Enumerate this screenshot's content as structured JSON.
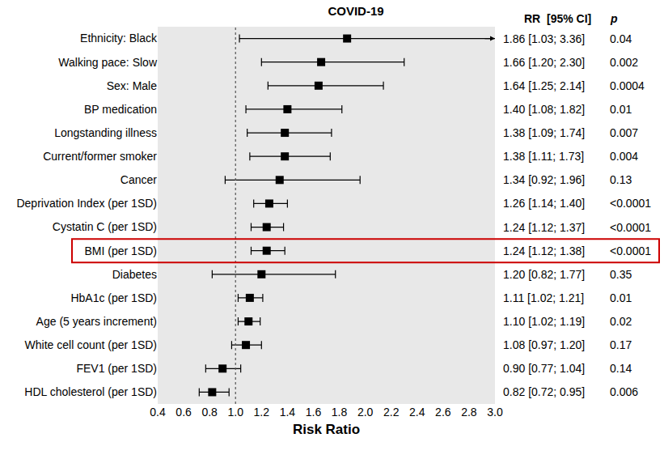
{
  "chart_data": {
    "type": "forest",
    "title": "COVID-19",
    "xlabel": "Risk Ratio",
    "categories": [
      "Ethnicity: Black",
      "Walking pace: Slow",
      "Sex: Male",
      "BP medication",
      "Longstanding illness",
      "Current/former smoker",
      "Cancer",
      "Deprivation Index (per 1SD)",
      "Cystatin C (per 1SD)",
      "BMI (per 1SD)",
      "Diabetes",
      "HbA1c (per 1SD)",
      "Age (5 years increment)",
      "White cell count (per 1SD)",
      "FEV1 (per 1SD)",
      "HDL cholesterol (per 1SD)"
    ],
    "values": [
      1.86,
      1.66,
      1.64,
      1.4,
      1.38,
      1.38,
      1.34,
      1.26,
      1.24,
      1.24,
      1.2,
      1.11,
      1.1,
      1.08,
      0.9,
      0.82
    ],
    "ci_low": [
      1.03,
      1.2,
      1.25,
      1.08,
      1.09,
      1.11,
      0.92,
      1.14,
      1.12,
      1.12,
      0.82,
      1.02,
      1.02,
      0.97,
      0.77,
      0.72
    ],
    "ci_high": [
      3.36,
      2.3,
      2.14,
      1.82,
      1.74,
      1.73,
      1.96,
      1.4,
      1.37,
      1.38,
      1.77,
      1.21,
      1.19,
      1.2,
      1.04,
      0.95
    ],
    "value_labels": [
      "1.86 [1.03; 3.36]",
      "1.66 [1.20; 2.30]",
      "1.64 [1.25; 2.14]",
      "1.40 [1.08; 1.82]",
      "1.38 [1.09; 1.74]",
      "1.38 [1.11; 1.73]",
      "1.34 [0.92; 1.96]",
      "1.26 [1.14; 1.40]",
      "1.24 [1.12; 1.37]",
      "1.24 [1.12; 1.38]",
      "1.20 [0.82; 1.77]",
      "1.11 [1.02; 1.21]",
      "1.10 [1.02; 1.19]",
      "1.08 [0.97; 1.20]",
      "0.90 [0.77; 1.04]",
      "0.82 [0.72; 0.95]"
    ],
    "value_header": "RR  [95% CI]",
    "p_header": "p",
    "p_values": [
      "0.04",
      "0.002",
      "0.0004",
      "0.01",
      "0.007",
      "0.004",
      "0.13",
      "<0.0001",
      "<0.0001",
      "<0.0001",
      "0.35",
      "0.01",
      "0.02",
      "0.17",
      "0.14",
      "0.006"
    ],
    "reference_line": 1,
    "highlight": "BMI (per 1SD)",
    "highlight_color": "#cc0000",
    "color": "#000000",
    "marker": "square",
    "xlim": [
      0.4,
      3.0
    ],
    "xticks": [
      0.4,
      0.6,
      0.8,
      {
        "value": 1,
        "label": "1.0"
      },
      1.2,
      1.4,
      1.6,
      1.8,
      {
        "value": 2,
        "label": "2.0"
      },
      2.2,
      2.4,
      2.6,
      2.8,
      {
        "value": 3,
        "label": "3.0"
      }
    ],
    "grid": false
  }
}
